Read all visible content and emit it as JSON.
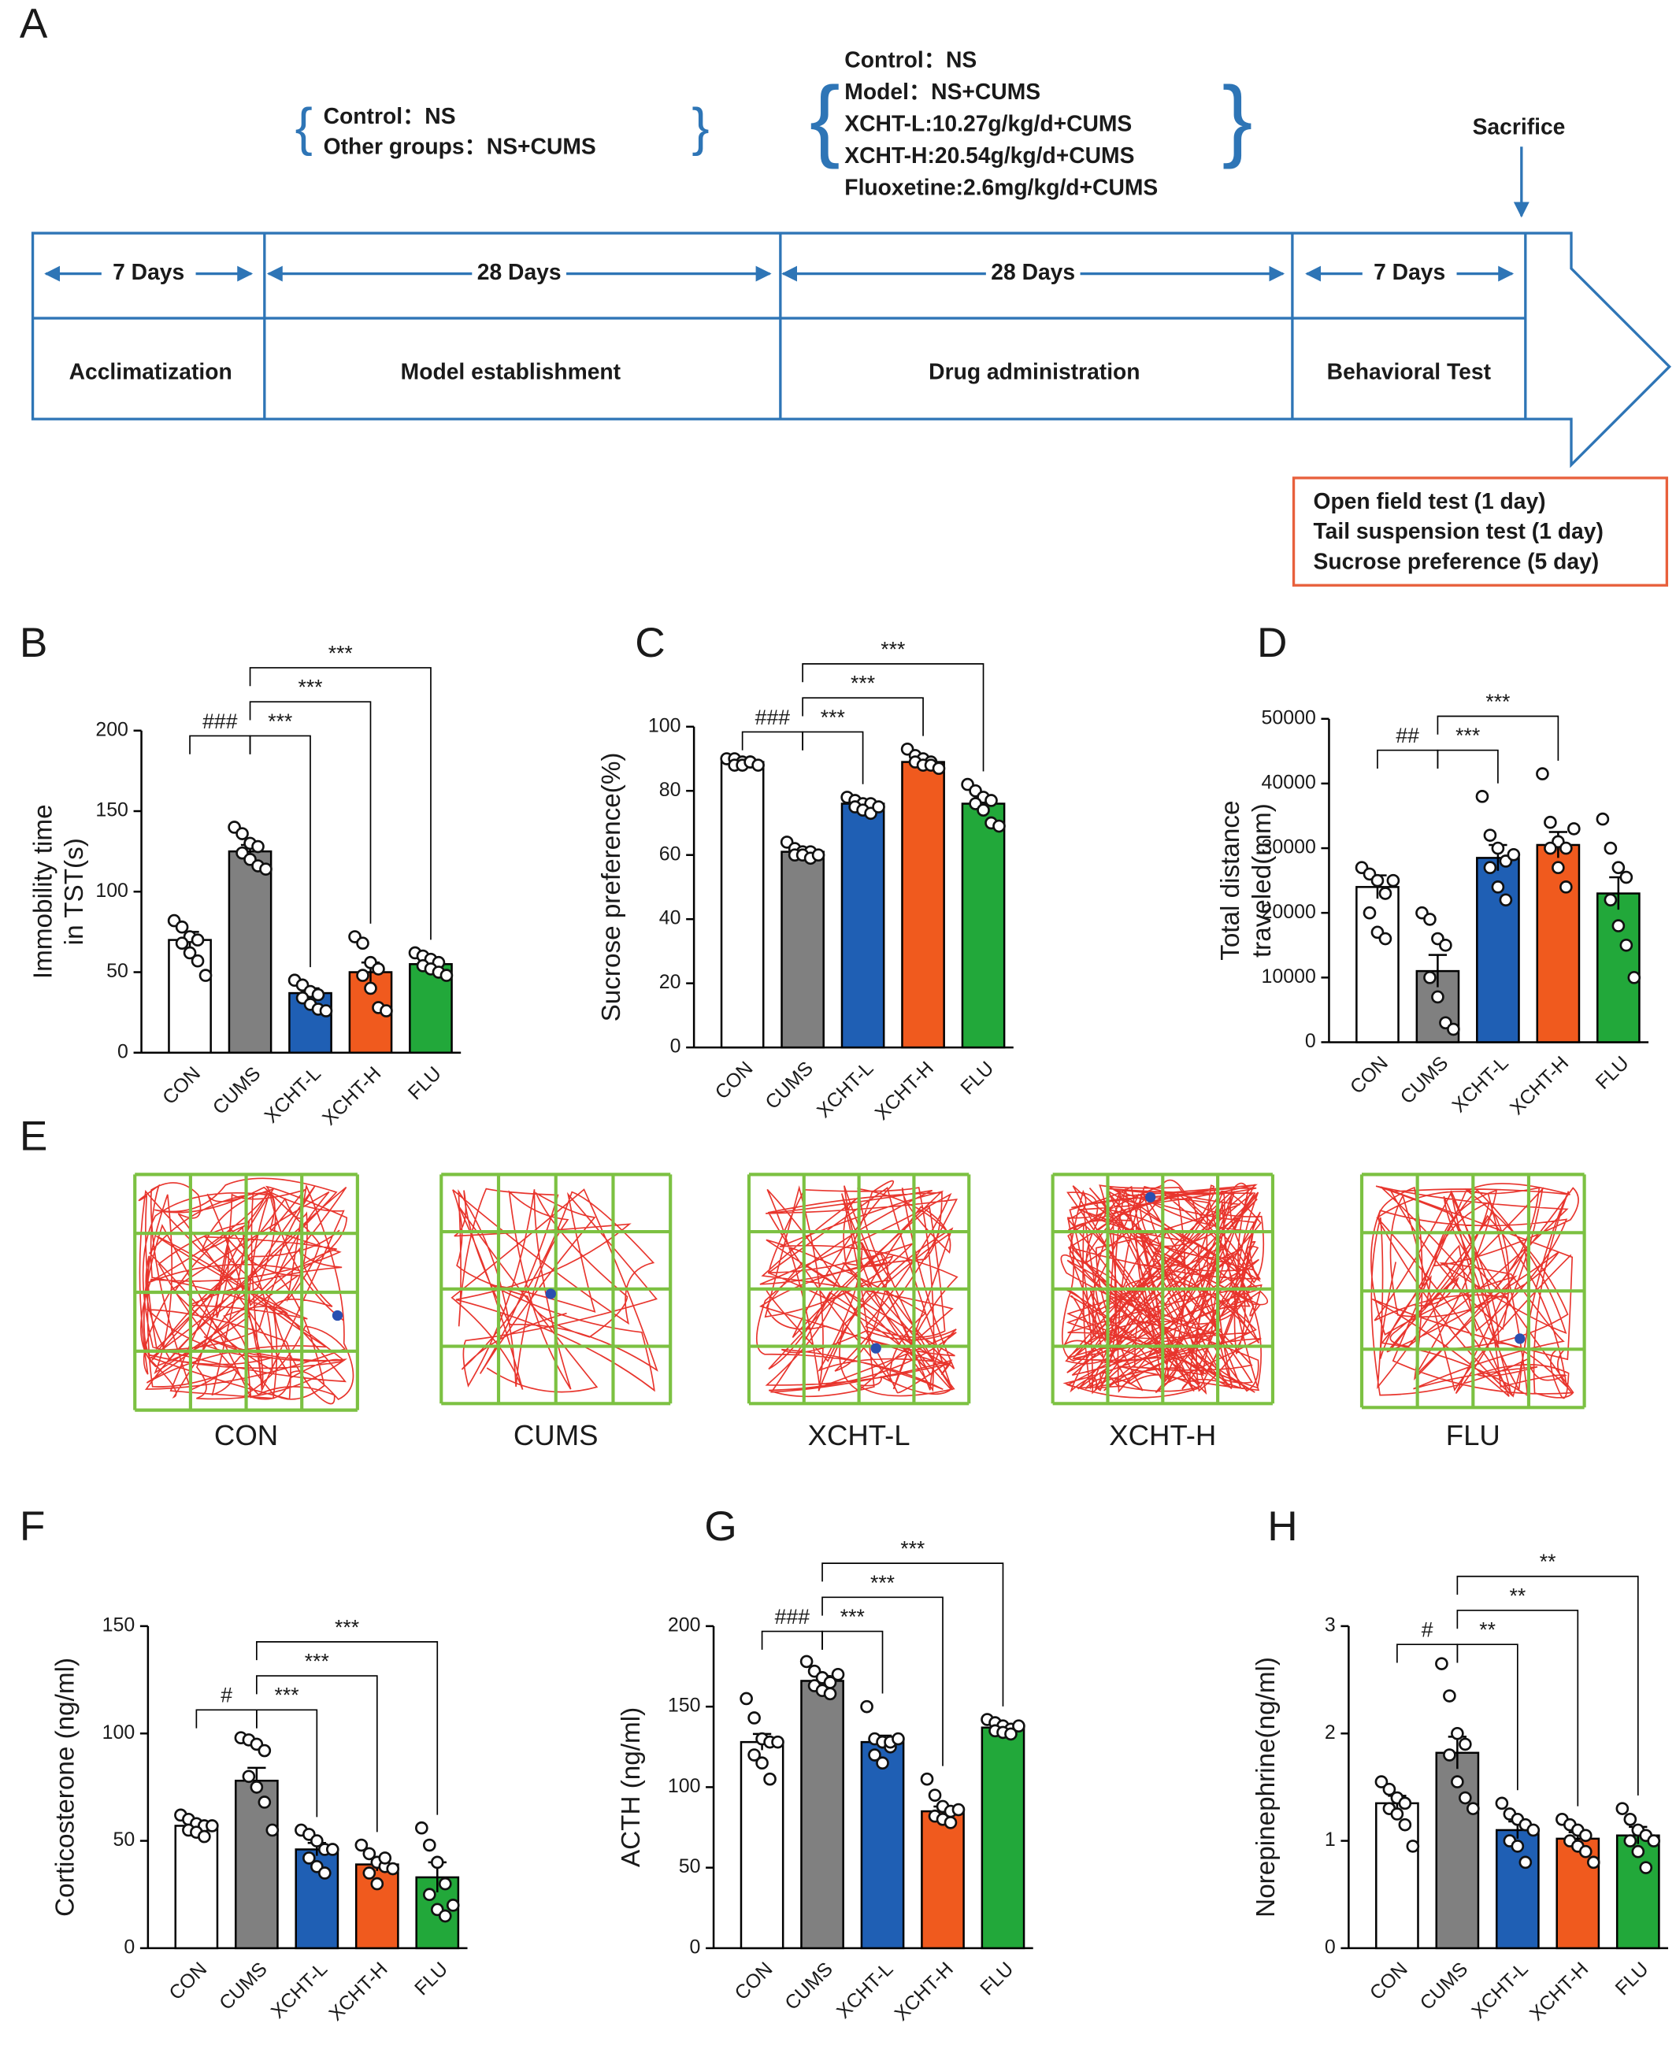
{
  "panel_labels": [
    "A",
    "B",
    "C",
    "D",
    "E",
    "F",
    "G",
    "H"
  ],
  "timeline": {
    "groups1": [
      "Control：NS",
      "Other groups：NS+CUMS"
    ],
    "groups2": [
      "Control：NS",
      "Model：NS+CUMS",
      "XCHT-L:10.27g/kg/d+CUMS",
      "XCHT-H:20.54g/kg/d+CUMS",
      "Fluoxetine:2.6mg/kg/d+CUMS"
    ],
    "sacrifice": "Sacrifice",
    "durations": [
      "7 Days",
      "28 Days",
      "28 Days",
      "7 Days"
    ],
    "phases": [
      "Acclimatization",
      "Model establishment",
      "Drug administration",
      "Behavioral Test"
    ],
    "tests": [
      "Open field test (1 day)",
      "Tail suspension test (1 day)",
      "Sucrose preference (5 day)"
    ]
  },
  "open_field": {
    "labels": [
      "CON",
      "CUMS",
      "XCHT-L",
      "XCHT-H",
      "FLU"
    ]
  },
  "chart_data": [
    {
      "type": "bar",
      "ylabel": [
        "Immobility time",
        "in TST(s)"
      ],
      "categories": [
        "CON",
        "CUMS",
        "XCHT-L",
        "XCHT-H",
        "FLU"
      ],
      "colors": [
        "#ffffff",
        "#808080",
        "#1f5fb4",
        "#f05a1e",
        "#22a83a"
      ],
      "values": [
        70,
        125,
        37,
        50,
        55
      ],
      "errors": [
        5,
        4,
        3,
        6,
        2
      ],
      "points": [
        [
          82,
          78,
          72,
          70,
          68,
          62,
          57,
          48
        ],
        [
          140,
          136,
          130,
          128,
          124,
          120,
          116,
          114
        ],
        [
          45,
          42,
          38,
          36,
          34,
          30,
          27,
          26
        ],
        [
          72,
          68,
          56,
          52,
          48,
          40,
          28,
          26
        ],
        [
          62,
          60,
          58,
          56,
          54,
          52,
          50,
          48
        ]
      ],
      "ylim": [
        0,
        200
      ],
      "yticks": [
        0,
        50,
        100,
        150,
        200
      ],
      "annotations": [
        {
          "label": "###",
          "from": 0,
          "to": 1
        },
        {
          "label": "***",
          "from": 1,
          "to": 2
        },
        {
          "label": "***",
          "from": 1,
          "to": 3
        },
        {
          "label": "***",
          "from": 1,
          "to": 4
        }
      ]
    },
    {
      "type": "bar",
      "ylabel": [
        "Sucrose preference(%)"
      ],
      "categories": [
        "CON",
        "CUMS",
        "XCHT-L",
        "XCHT-H",
        "FLU"
      ],
      "colors": [
        "#ffffff",
        "#808080",
        "#1f5fb4",
        "#f05a1e",
        "#22a83a"
      ],
      "values": [
        89,
        61,
        76,
        89,
        76
      ],
      "errors": [
        0.6,
        0.8,
        1.2,
        1,
        2
      ],
      "points": [
        [
          90,
          90,
          89,
          89,
          88,
          88,
          89,
          88
        ],
        [
          64,
          62,
          61,
          61,
          60,
          60,
          59,
          60
        ],
        [
          78,
          77,
          76,
          76,
          75,
          74,
          73,
          75
        ],
        [
          93,
          91,
          90,
          89,
          89,
          88,
          88,
          87
        ],
        [
          82,
          80,
          78,
          77,
          76,
          74,
          70,
          69
        ]
      ],
      "ylim": [
        0,
        100
      ],
      "yticks": [
        0,
        20,
        40,
        60,
        80,
        100
      ],
      "annotations": [
        {
          "label": "###",
          "from": 0,
          "to": 1
        },
        {
          "label": "***",
          "from": 1,
          "to": 2
        },
        {
          "label": "***",
          "from": 1,
          "to": 3
        },
        {
          "label": "***",
          "from": 1,
          "to": 4
        }
      ]
    },
    {
      "type": "bar",
      "ylabel": [
        "Total distance",
        "traveled(mm)"
      ],
      "categories": [
        "CON",
        "CUMS",
        "XCHT-L",
        "XCHT-H",
        "FLU"
      ],
      "colors": [
        "#ffffff",
        "#808080",
        "#1f5fb4",
        "#f05a1e",
        "#22a83a"
      ],
      "values": [
        24000,
        11000,
        28500,
        30500,
        23000
      ],
      "errors": [
        1800,
        2500,
        2000,
        2000,
        2500
      ],
      "points": [
        [
          27000,
          26000,
          25000,
          23000,
          20000,
          17000,
          16000,
          25000
        ],
        [
          20000,
          19000,
          16000,
          15000,
          10000,
          7000,
          3000,
          2000
        ],
        [
          38000,
          32000,
          30000,
          28000,
          27000,
          24000,
          22000,
          29000
        ],
        [
          41500,
          34000,
          31000,
          30000,
          30000,
          27000,
          24000,
          33000
        ],
        [
          34500,
          30000,
          27000,
          25500,
          22000,
          18000,
          15000,
          10000
        ]
      ],
      "ylim": [
        0,
        50000
      ],
      "yticks": [
        0,
        10000,
        20000,
        30000,
        40000,
        50000
      ],
      "annotations": [
        {
          "label": "##",
          "from": 0,
          "to": 1
        },
        {
          "label": "***",
          "from": 1,
          "to": 2
        },
        {
          "label": "***",
          "from": 1,
          "to": 3
        }
      ]
    },
    {
      "type": "bar",
      "ylabel": [
        "Corticosterone (ng/ml)"
      ],
      "categories": [
        "CON",
        "CUMS",
        "XCHT-L",
        "XCHT-H",
        "FLU"
      ],
      "colors": [
        "#ffffff",
        "#808080",
        "#1f5fb4",
        "#f05a1e",
        "#22a83a"
      ],
      "values": [
        57,
        78,
        46,
        39,
        33
      ],
      "errors": [
        2,
        6,
        3,
        3,
        7
      ],
      "points": [
        [
          62,
          60,
          58,
          57,
          55,
          54,
          52,
          57
        ],
        [
          98,
          97,
          95,
          92,
          80,
          75,
          68,
          55
        ],
        [
          55,
          53,
          50,
          46,
          42,
          38,
          35,
          46
        ],
        [
          48,
          44,
          40,
          38,
          35,
          30,
          42,
          37
        ],
        [
          56,
          48,
          40,
          30,
          25,
          18,
          15,
          20
        ]
      ],
      "ylim": [
        0,
        150
      ],
      "yticks": [
        0,
        50,
        100,
        150
      ],
      "annotations": [
        {
          "label": "#",
          "from": 0,
          "to": 1
        },
        {
          "label": "***",
          "from": 1,
          "to": 2
        },
        {
          "label": "***",
          "from": 1,
          "to": 3
        },
        {
          "label": "***",
          "from": 1,
          "to": 4
        }
      ]
    },
    {
      "type": "bar",
      "ylabel": [
        "ACTH (ng/ml)"
      ],
      "categories": [
        "CON",
        "CUMS",
        "XCHT-L",
        "XCHT-H",
        "FLU"
      ],
      "colors": [
        "#ffffff",
        "#808080",
        "#1f5fb4",
        "#f05a1e",
        "#22a83a"
      ],
      "values": [
        128,
        166,
        128,
        85,
        137
      ],
      "errors": [
        5,
        3,
        4,
        3,
        2
      ],
      "points": [
        [
          155,
          143,
          130,
          128,
          120,
          115,
          105,
          128
        ],
        [
          178,
          172,
          168,
          165,
          163,
          160,
          158,
          170
        ],
        [
          150,
          130,
          128,
          125,
          120,
          115,
          128,
          130
        ],
        [
          105,
          95,
          88,
          85,
          82,
          80,
          78,
          86
        ],
        [
          142,
          140,
          138,
          136,
          135,
          134,
          133,
          138
        ]
      ],
      "ylim": [
        0,
        200
      ],
      "yticks": [
        0,
        50,
        100,
        150,
        200
      ],
      "annotations": [
        {
          "label": "###",
          "from": 0,
          "to": 1
        },
        {
          "label": "***",
          "from": 1,
          "to": 2
        },
        {
          "label": "***",
          "from": 1,
          "to": 3
        },
        {
          "label": "***",
          "from": 1,
          "to": 4
        }
      ]
    },
    {
      "type": "bar",
      "ylabel": [
        "Norepinephrine(ng/ml)"
      ],
      "categories": [
        "CON",
        "CUMS",
        "XCHT-L",
        "XCHT-H",
        "FLU"
      ],
      "colors": [
        "#ffffff",
        "#808080",
        "#1f5fb4",
        "#f05a1e",
        "#22a83a"
      ],
      "values": [
        1.35,
        1.82,
        1.1,
        1.02,
        1.05
      ],
      "errors": [
        0.07,
        0.15,
        0.08,
        0.06,
        0.08
      ],
      "points": [
        [
          1.55,
          1.48,
          1.4,
          1.35,
          1.3,
          1.25,
          1.15,
          0.95
        ],
        [
          2.65,
          2.35,
          2.0,
          1.9,
          1.8,
          1.55,
          1.4,
          1.3
        ],
        [
          1.35,
          1.25,
          1.2,
          1.15,
          1.0,
          0.95,
          0.8,
          1.1
        ],
        [
          1.2,
          1.15,
          1.1,
          1.05,
          1.0,
          0.95,
          0.9,
          0.8
        ],
        [
          1.3,
          1.2,
          1.1,
          1.05,
          1.0,
          0.9,
          0.75,
          1.0
        ]
      ],
      "ylim": [
        0,
        3
      ],
      "yticks": [
        0,
        1,
        2,
        3
      ],
      "annotations": [
        {
          "label": "#",
          "from": 0,
          "to": 1
        },
        {
          "label": "**",
          "from": 1,
          "to": 2
        },
        {
          "label": "**",
          "from": 1,
          "to": 3
        },
        {
          "label": "**",
          "from": 1,
          "to": 4
        }
      ]
    }
  ]
}
